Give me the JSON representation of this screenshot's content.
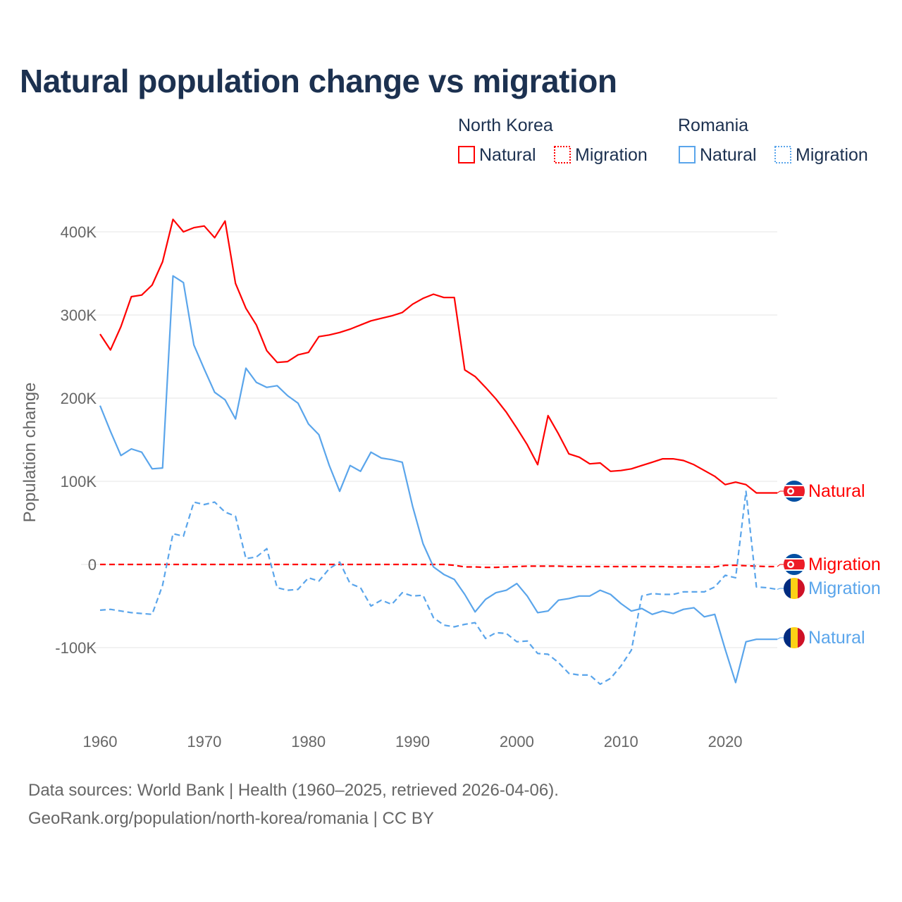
{
  "title": "Natural population change vs migration",
  "source_line1": "Data sources: World Bank | Health (1960–2025, retrieved 2026-04-06).",
  "source_line2": "GeoRank.org/population/north-korea/romania | CC BY",
  "colors": {
    "north_korea": "#ff0000",
    "romania": "#5aa5eb"
  },
  "chart_data": {
    "type": "line",
    "title": "Natural population change vs migration",
    "xlabel": "",
    "ylabel": "Population change",
    "xlim": [
      1960,
      2025
    ],
    "ylim": [
      -150000,
      420000
    ],
    "x_ticks": [
      1960,
      1970,
      1980,
      1990,
      2000,
      2010,
      2020
    ],
    "x_tick_labels": [
      "1960",
      "1970",
      "1980",
      "1990",
      "2000",
      "2010",
      "2020"
    ],
    "y_ticks": [
      400000,
      300000,
      200000,
      100000,
      0,
      -100000
    ],
    "y_tick_labels": [
      "400K",
      "300K",
      "200K",
      "100K",
      "0",
      "-100K"
    ],
    "grid": true,
    "legend_placement": "top-right",
    "legend": [
      {
        "group": "North Korea",
        "items": [
          "Natural",
          "Migration"
        ]
      },
      {
        "group": "Romania",
        "items": [
          "Natural",
          "Migration"
        ]
      }
    ],
    "x": [
      1960,
      1961,
      1962,
      1963,
      1964,
      1965,
      1966,
      1967,
      1968,
      1969,
      1970,
      1971,
      1972,
      1973,
      1974,
      1975,
      1976,
      1977,
      1978,
      1979,
      1980,
      1981,
      1982,
      1983,
      1984,
      1985,
      1986,
      1987,
      1988,
      1989,
      1990,
      1991,
      1992,
      1993,
      1994,
      1995,
      1996,
      1997,
      1998,
      1999,
      2000,
      2001,
      2002,
      2003,
      2004,
      2005,
      2006,
      2007,
      2008,
      2009,
      2010,
      2011,
      2012,
      2013,
      2014,
      2015,
      2016,
      2017,
      2018,
      2019,
      2020,
      2021,
      2022,
      2023,
      2024,
      2025
    ],
    "series": [
      {
        "name": "Natural",
        "country": "North Korea",
        "style": "solid",
        "color": "#ff0000",
        "values": [
          277000,
          258000,
          286000,
          322000,
          324000,
          336000,
          364000,
          415000,
          400000,
          405000,
          407000,
          393000,
          413000,
          338000,
          308000,
          288000,
          257000,
          243000,
          244000,
          252000,
          255000,
          274000,
          276000,
          279000,
          283000,
          288000,
          293000,
          296000,
          299000,
          303000,
          313000,
          320000,
          325000,
          321000,
          321000,
          234000,
          226000,
          213000,
          199000,
          183000,
          164000,
          144000,
          120000,
          179000,
          157000,
          133000,
          129000,
          121000,
          122000,
          112000,
          113000,
          115000,
          119000,
          123000,
          127000,
          127000,
          125000,
          120000,
          113000,
          106000,
          96000,
          99000,
          96000,
          86000,
          86000,
          86000
        ]
      },
      {
        "name": "Migration",
        "country": "North Korea",
        "style": "dashed",
        "color": "#ff0000",
        "values": [
          0,
          0,
          0,
          0,
          0,
          0,
          0,
          0,
          0,
          0,
          0,
          0,
          0,
          0,
          0,
          0,
          0,
          0,
          0,
          0,
          0,
          0,
          0,
          0,
          0,
          0,
          0,
          0,
          0,
          0,
          0,
          0,
          0,
          0,
          -1000,
          -3000,
          -3000,
          -3500,
          -3500,
          -3000,
          -2500,
          -2000,
          -2000,
          -2000,
          -2000,
          -2500,
          -2500,
          -2500,
          -2500,
          -2500,
          -2500,
          -2500,
          -2500,
          -2500,
          -2500,
          -3000,
          -3000,
          -3000,
          -3000,
          -3000,
          -1000,
          -1000,
          -1500,
          -2000,
          -2500,
          -2500
        ]
      },
      {
        "name": "Natural",
        "country": "Romania",
        "style": "solid",
        "color": "#5aa5eb",
        "values": [
          191000,
          160000,
          131000,
          139000,
          135000,
          115000,
          116000,
          347000,
          339000,
          264000,
          235000,
          207000,
          198000,
          175000,
          236000,
          219000,
          213000,
          215000,
          203000,
          194000,
          169000,
          156000,
          119000,
          88000,
          119000,
          112000,
          135000,
          128000,
          126000,
          123000,
          70000,
          25000,
          -3000,
          -12000,
          -18000,
          -36000,
          -57000,
          -42000,
          -34000,
          -31000,
          -23000,
          -38000,
          -58000,
          -56000,
          -43000,
          -41000,
          -38000,
          -38000,
          -31000,
          -36000,
          -47000,
          -56000,
          -53000,
          -60000,
          -56000,
          -59000,
          -54000,
          -52000,
          -63000,
          -60000,
          -102000,
          -142000,
          -93000,
          -90000,
          -90000,
          -90000
        ]
      },
      {
        "name": "Migration",
        "country": "Romania",
        "style": "dashed",
        "color": "#5aa5eb",
        "values": [
          -55000,
          -54000,
          -56000,
          -58000,
          -59000,
          -60000,
          -25000,
          37000,
          34000,
          75000,
          72000,
          75000,
          63000,
          58000,
          7000,
          9000,
          19000,
          -28000,
          -31000,
          -30000,
          -16000,
          -20000,
          -5000,
          3000,
          -23000,
          -28000,
          -50000,
          -43000,
          -48000,
          -34000,
          -38000,
          -37000,
          -64000,
          -73000,
          -75000,
          -72000,
          -70000,
          -89000,
          -82000,
          -83000,
          -93000,
          -92000,
          -107000,
          -108000,
          -118000,
          -131000,
          -133000,
          -133000,
          -144000,
          -137000,
          -122000,
          -103000,
          -38000,
          -35000,
          -36000,
          -36000,
          -33000,
          -33000,
          -33000,
          -27000,
          -13000,
          -16000,
          88000,
          -27000,
          -28000,
          -30000
        ]
      }
    ],
    "end_labels": [
      {
        "country": "North Korea",
        "text": "Natural"
      },
      {
        "country": "North Korea",
        "text": "Migration"
      },
      {
        "country": "Romania",
        "text": "Migration"
      },
      {
        "country": "Romania",
        "text": "Natural"
      }
    ]
  }
}
